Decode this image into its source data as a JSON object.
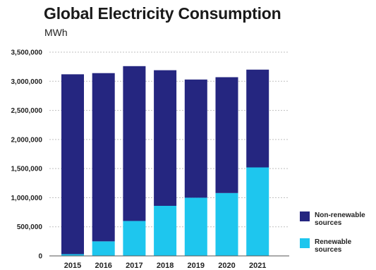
{
  "title": "Global Electricity Consumption",
  "subtitle": "MWh",
  "chart_data": {
    "type": "bar",
    "stacked": true,
    "title": "Global Electricity Consumption",
    "ylabel": "MWh",
    "xlabel": "",
    "categories": [
      "2015",
      "2016",
      "2017",
      "2018",
      "2019",
      "2020",
      "2021"
    ],
    "series": [
      {
        "name": "Renewable sources",
        "color": "#1ec6ee",
        "values": [
          30000,
          250000,
          600000,
          860000,
          1000000,
          1080000,
          1520000
        ]
      },
      {
        "name": "Non-renewable sources",
        "color": "#252680",
        "values": [
          3090000,
          2890000,
          2660000,
          2330000,
          2030000,
          1990000,
          1680000
        ]
      }
    ],
    "ylim": [
      0,
      3500000
    ],
    "yticks": [
      0,
      500000,
      1000000,
      1500000,
      2000000,
      2500000,
      3000000,
      3500000
    ],
    "ytick_labels": [
      "0",
      "500,000",
      "1,000,000",
      "1,500,000",
      "2,000,000",
      "2,500,000",
      "3,000,000",
      "3,500,000"
    ],
    "grid": true,
    "legend": {
      "position": "right",
      "entries": [
        {
          "lines": [
            "Non-renewable",
            "sources"
          ],
          "color": "#252680"
        },
        {
          "lines": [
            "Renewable",
            "sources"
          ],
          "color": "#1ec6ee"
        }
      ]
    }
  }
}
